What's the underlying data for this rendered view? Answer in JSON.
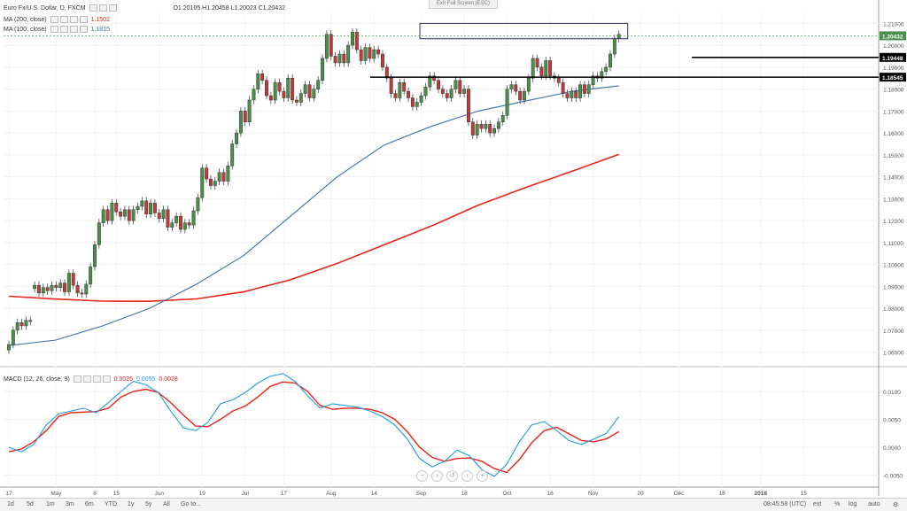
{
  "header": {
    "exit_label": "Exit Full Screen (ESC)",
    "symbol": "Euro Fx/U.S. Dollar, D, FXCM",
    "ohlc": "O1.20105  H1.20458  L1.20023  C1.20432",
    "ma200_label": "MA (200, close)",
    "ma200_value": "1.1502",
    "ma100_label": "MA (100, close)",
    "ma100_value": "1.1815",
    "macd_label": "MACD (12, 26, close, 9)",
    "macd_v1": "0.0026",
    "macd_v2": "0.0055",
    "macd_v3": "0.0028"
  },
  "colors": {
    "up": "#4a8f4a",
    "down": "#c23a3a",
    "ma200": "#e8221b",
    "ma100": "#3c6fb0",
    "macd": "#1f9be0",
    "signal": "#e8221b",
    "level": "#000000"
  },
  "toolbar": {
    "ranges": [
      "1d",
      "5d",
      "1m",
      "3m",
      "6m",
      "YTD",
      "1y",
      "5y",
      "All",
      "Go to..."
    ],
    "time": "08:45:58 (UTC)",
    "ext": "ext",
    "pct": "%",
    "log": "log",
    "auto": "auto"
  },
  "chart_data": {
    "type": "candlestick",
    "price_axis": {
      "min": 1.055,
      "max": 1.215,
      "ticks": [
        "1.06000",
        "1.07000",
        "1.08000",
        "1.09000",
        "1.10000",
        "1.11000",
        "1.12000",
        "1.13000",
        "1.14000",
        "1.15000",
        "1.16000",
        "1.17000",
        "1.18000",
        "1.19000",
        "1.20000",
        "1.21000"
      ],
      "tick_values": [
        1.06,
        1.07,
        1.08,
        1.09,
        1.1,
        1.11,
        1.12,
        1.13,
        1.14,
        1.15,
        1.16,
        1.17,
        1.18,
        1.19,
        1.2,
        1.21
      ],
      "badges": [
        {
          "text": "1.20432",
          "value": 1.20432,
          "kind": "last"
        },
        {
          "text": "1.19448",
          "value": 1.19448,
          "kind": "level"
        },
        {
          "text": "1.18545",
          "value": 1.18545,
          "kind": "level"
        }
      ]
    },
    "macd_axis": {
      "min": -0.0068,
      "max": 0.0138,
      "ticks": [
        "0.0100",
        "0.0050",
        "0.0000",
        "-0.0050"
      ],
      "tick_values": [
        0.01,
        0.005,
        0,
        -0.005
      ]
    },
    "x_labels": [
      "17",
      "May",
      "8",
      "15",
      "Jun",
      "19",
      "Jul",
      "17",
      "Aug",
      "14",
      "Sep",
      "18",
      "Oct",
      "16",
      "Nov",
      "20",
      "Dec",
      "18",
      "2018",
      "15"
    ],
    "x_label_index": [
      0,
      11,
      20,
      25,
      35,
      45,
      55,
      64,
      75,
      85,
      96,
      106,
      116,
      126,
      136,
      147,
      156,
      166,
      175,
      185
    ],
    "candles": [
      [
        1.061,
        1.0635
      ],
      [
        1.0635,
        1.07
      ],
      [
        1.07,
        1.0735
      ],
      [
        1.0735,
        1.072
      ],
      [
        1.072,
        1.0745
      ],
      [
        1.0745,
        1.074
      ],
      [
        1.089,
        1.0905
      ],
      [
        1.0905,
        1.087
      ],
      [
        1.087,
        1.0895
      ],
      [
        1.0895,
        1.088
      ],
      [
        1.088,
        1.0905
      ],
      [
        1.0905,
        1.0895
      ],
      [
        1.0895,
        1.0915
      ],
      [
        1.0915,
        1.0875
      ],
      [
        1.0875,
        1.096
      ],
      [
        1.096,
        1.0905
      ],
      [
        1.0905,
        1.087
      ],
      [
        1.087,
        1.0865
      ],
      [
        1.0865,
        1.091
      ],
      [
        1.091,
        1.099
      ],
      [
        1.099,
        1.109
      ],
      [
        1.109,
        1.119
      ],
      [
        1.119,
        1.125
      ],
      [
        1.125,
        1.12
      ],
      [
        1.12,
        1.128
      ],
      [
        1.128,
        1.124
      ],
      [
        1.124,
        1.122
      ],
      [
        1.122,
        1.125
      ],
      [
        1.125,
        1.12
      ],
      [
        1.12,
        1.125
      ],
      [
        1.125,
        1.1265
      ],
      [
        1.1265,
        1.129
      ],
      [
        1.129,
        1.123
      ],
      [
        1.123,
        1.128
      ],
      [
        1.128,
        1.1235
      ],
      [
        1.1235,
        1.121
      ],
      [
        1.121,
        1.125
      ],
      [
        1.125,
        1.117
      ],
      [
        1.117,
        1.119
      ],
      [
        1.119,
        1.122
      ],
      [
        1.122,
        1.116
      ],
      [
        1.116,
        1.119
      ],
      [
        1.119,
        1.118
      ],
      [
        1.118,
        1.1245
      ],
      [
        1.1245,
        1.1305
      ],
      [
        1.1305,
        1.144
      ],
      [
        1.144,
        1.139
      ],
      [
        1.139,
        1.136
      ],
      [
        1.136,
        1.138
      ],
      [
        1.138,
        1.142
      ],
      [
        1.142,
        1.138
      ],
      [
        1.138,
        1.145
      ],
      [
        1.145,
        1.155
      ],
      [
        1.155,
        1.16
      ],
      [
        1.16,
        1.17
      ],
      [
        1.17,
        1.165
      ],
      [
        1.165,
        1.175
      ],
      [
        1.175,
        1.18
      ],
      [
        1.18,
        1.187
      ],
      [
        1.187,
        1.184
      ],
      [
        1.184,
        1.177
      ],
      [
        1.177,
        1.175
      ],
      [
        1.175,
        1.183
      ],
      [
        1.183,
        1.179
      ],
      [
        1.179,
        1.176
      ],
      [
        1.176,
        1.185
      ],
      [
        1.185,
        1.175
      ],
      [
        1.175,
        1.174
      ],
      [
        1.174,
        1.178
      ],
      [
        1.178,
        1.182
      ],
      [
        1.182,
        1.176
      ],
      [
        1.176,
        1.18
      ],
      [
        1.18,
        1.184
      ],
      [
        1.184,
        1.194
      ],
      [
        1.194,
        1.205
      ],
      [
        1.205,
        1.195
      ],
      [
        1.195,
        1.192
      ],
      [
        1.192,
        1.196
      ],
      [
        1.196,
        1.192
      ],
      [
        1.192,
        1.2
      ],
      [
        1.2,
        1.206
      ],
      [
        1.206,
        1.198
      ],
      [
        1.198,
        1.193
      ],
      [
        1.193,
        1.199
      ],
      [
        1.199,
        1.194
      ],
      [
        1.194,
        1.198
      ],
      [
        1.198,
        1.196
      ],
      [
        1.196,
        1.19
      ],
      [
        1.19,
        1.185
      ],
      [
        1.185,
        1.178
      ],
      [
        1.178,
        1.176
      ],
      [
        1.176,
        1.183
      ],
      [
        1.183,
        1.179
      ],
      [
        1.179,
        1.176
      ],
      [
        1.176,
        1.172
      ],
      [
        1.172,
        1.174
      ],
      [
        1.174,
        1.177
      ],
      [
        1.177,
        1.181
      ],
      [
        1.181,
        1.186
      ],
      [
        1.186,
        1.184
      ],
      [
        1.184,
        1.18
      ],
      [
        1.18,
        1.178
      ],
      [
        1.178,
        1.176
      ],
      [
        1.176,
        1.18
      ],
      [
        1.18,
        1.184
      ],
      [
        1.184,
        1.178
      ],
      [
        1.178,
        1.18
      ],
      [
        1.18,
        1.165
      ],
      [
        1.165,
        1.159
      ],
      [
        1.159,
        1.164
      ],
      [
        1.164,
        1.162
      ],
      [
        1.162,
        1.164
      ],
      [
        1.164,
        1.16
      ],
      [
        1.16,
        1.162
      ],
      [
        1.162,
        1.165
      ],
      [
        1.165,
        1.168
      ],
      [
        1.168,
        1.18
      ],
      [
        1.18,
        1.182
      ],
      [
        1.182,
        1.179
      ],
      [
        1.179,
        1.175
      ],
      [
        1.175,
        1.179
      ],
      [
        1.179,
        1.185
      ],
      [
        1.185,
        1.194
      ],
      [
        1.194,
        1.19
      ],
      [
        1.19,
        1.186
      ],
      [
        1.186,
        1.193
      ],
      [
        1.193,
        1.186
      ],
      [
        1.186,
        1.185
      ],
      [
        1.185,
        1.183
      ],
      [
        1.183,
        1.178
      ],
      [
        1.178,
        1.176
      ],
      [
        1.176,
        1.179
      ],
      [
        1.179,
        1.176
      ],
      [
        1.176,
        1.182
      ],
      [
        1.182,
        1.178
      ],
      [
        1.178,
        1.182
      ],
      [
        1.182,
        1.186
      ],
      [
        1.186,
        1.185
      ],
      [
        1.185,
        1.188
      ],
      [
        1.188,
        1.19
      ],
      [
        1.19,
        1.196
      ],
      [
        1.196,
        1.203
      ],
      [
        1.203,
        1.205
      ]
    ],
    "ma200": [
      [
        0,
        1.0855
      ],
      [
        20,
        1.0842
      ],
      [
        40,
        1.0833
      ],
      [
        60,
        1.0832
      ],
      [
        80,
        1.0843
      ],
      [
        100,
        1.0875
      ],
      [
        120,
        1.093
      ],
      [
        140,
        1.1005
      ],
      [
        160,
        1.109
      ],
      [
        180,
        1.1175
      ],
      [
        200,
        1.127
      ],
      [
        220,
        1.135
      ],
      [
        240,
        1.1425
      ],
      [
        260,
        1.1502
      ]
    ],
    "ma100": [
      [
        0,
        1.063
      ],
      [
        20,
        1.0655
      ],
      [
        40,
        1.072
      ],
      [
        60,
        1.08
      ],
      [
        80,
        1.091
      ],
      [
        100,
        1.104
      ],
      [
        120,
        1.122
      ],
      [
        140,
        1.14
      ],
      [
        160,
        1.1545
      ],
      [
        180,
        1.163
      ],
      [
        200,
        1.17
      ],
      [
        220,
        1.1745
      ],
      [
        240,
        1.179
      ],
      [
        260,
        1.1815
      ]
    ],
    "macd_line": [
      0.0,
      -0.0008,
      0.0005,
      0.004,
      0.006,
      0.0065,
      0.007,
      0.0062,
      0.008,
      0.01,
      0.0118,
      0.0112,
      0.0098,
      0.0065,
      0.0035,
      0.003,
      0.0045,
      0.0078,
      0.0085,
      0.0098,
      0.0115,
      0.0127,
      0.0132,
      0.0118,
      0.0092,
      0.007,
      0.0078,
      0.0075,
      0.0072,
      0.0065,
      0.0055,
      0.004,
      0.0015,
      -0.002,
      -0.0035,
      -0.0025,
      -0.0005,
      -0.0015,
      -0.004,
      -0.0052,
      -0.003,
      0.001,
      0.004,
      0.0046,
      0.003,
      0.0012,
      0.0005,
      0.0015,
      0.0025,
      0.0055
    ],
    "signal_line": [
      -0.0008,
      -0.0003,
      0.001,
      0.003,
      0.0055,
      0.0062,
      0.0063,
      0.0064,
      0.007,
      0.009,
      0.01,
      0.0104,
      0.0098,
      0.008,
      0.0058,
      0.0038,
      0.0037,
      0.005,
      0.0065,
      0.0074,
      0.009,
      0.0109,
      0.0117,
      0.0115,
      0.01,
      0.0075,
      0.0068,
      0.007,
      0.007,
      0.0068,
      0.0062,
      0.005,
      0.0028,
      0.0,
      -0.0018,
      -0.0025,
      -0.002,
      -0.0019,
      -0.0025,
      -0.0038,
      -0.0045,
      -0.0022,
      0.0008,
      0.003,
      0.0036,
      0.0024,
      0.0012,
      0.001,
      0.0015,
      0.0028
    ]
  }
}
